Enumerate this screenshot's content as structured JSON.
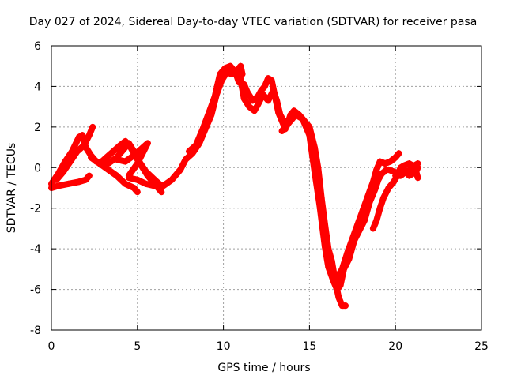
{
  "chart_data": {
    "type": "scatter",
    "title": "Day 027 of 2024, Sidereal Day-to-day VTEC variation (SDTVAR) for receiver pasa",
    "xlabel": "GPS time / hours",
    "ylabel": "SDTVAR / TECUs",
    "xlim": [
      0,
      25
    ],
    "ylim": [
      -8,
      6
    ],
    "xticks": [
      0,
      5,
      10,
      15,
      20,
      25
    ],
    "yticks": [
      -8,
      -6,
      -4,
      -2,
      0,
      2,
      4,
      6
    ],
    "grid": true,
    "marker": "+",
    "color": "#ff0000",
    "series": [
      {
        "name": "",
        "traces": [
          [
            [
              0.0,
              -1.0
            ],
            [
              0.4,
              -0.9
            ],
            [
              1.0,
              -0.8
            ],
            [
              1.6,
              -0.7
            ],
            [
              2.0,
              -0.6
            ],
            [
              2.2,
              -0.4
            ]
          ],
          [
            [
              0.0,
              -0.8
            ],
            [
              0.4,
              -0.3
            ],
            [
              0.8,
              0.3
            ],
            [
              1.2,
              0.8
            ],
            [
              1.6,
              1.5
            ],
            [
              1.8,
              1.6
            ],
            [
              2.0,
              1.0
            ],
            [
              2.3,
              0.6
            ],
            [
              2.6,
              0.3
            ],
            [
              3.0,
              0.2
            ]
          ],
          [
            [
              0.3,
              -0.6
            ],
            [
              0.7,
              -0.2
            ],
            [
              1.1,
              0.3
            ],
            [
              1.5,
              0.8
            ],
            [
              1.9,
              1.1
            ],
            [
              2.2,
              1.6
            ],
            [
              2.4,
              2.0
            ]
          ],
          [
            [
              2.3,
              0.5
            ],
            [
              2.8,
              0.2
            ],
            [
              3.3,
              -0.1
            ],
            [
              3.8,
              -0.4
            ],
            [
              4.3,
              -0.8
            ],
            [
              4.8,
              -1.0
            ],
            [
              5.0,
              -1.2
            ]
          ],
          [
            [
              2.8,
              0.2
            ],
            [
              3.2,
              0.5
            ],
            [
              3.6,
              0.8
            ],
            [
              4.0,
              1.1
            ],
            [
              4.3,
              1.3
            ],
            [
              4.6,
              1.0
            ],
            [
              5.0,
              0.4
            ],
            [
              5.3,
              0.0
            ],
            [
              5.6,
              -0.4
            ],
            [
              6.0,
              -0.8
            ],
            [
              6.4,
              -1.2
            ]
          ],
          [
            [
              3.3,
              0.2
            ],
            [
              3.8,
              0.5
            ],
            [
              4.2,
              0.9
            ],
            [
              4.5,
              1.2
            ],
            [
              4.8,
              0.8
            ],
            [
              5.1,
              0.3
            ],
            [
              5.5,
              -0.2
            ],
            [
              6.0,
              -0.6
            ],
            [
              6.4,
              -0.9
            ]
          ],
          [
            [
              3.8,
              0.4
            ],
            [
              4.3,
              0.3
            ],
            [
              4.8,
              0.6
            ],
            [
              5.2,
              0.9
            ],
            [
              5.6,
              1.2
            ],
            [
              5.0,
              0.2
            ],
            [
              4.5,
              -0.4
            ]
          ],
          [
            [
              4.5,
              -0.5
            ],
            [
              5.0,
              -0.6
            ],
            [
              5.5,
              -0.8
            ],
            [
              6.0,
              -0.9
            ],
            [
              6.5,
              -0.9
            ],
            [
              7.0,
              -0.6
            ],
            [
              7.5,
              -0.1
            ],
            [
              7.8,
              0.4
            ],
            [
              8.2,
              0.7
            ],
            [
              8.6,
              1.2
            ],
            [
              9.0,
              2.0
            ],
            [
              9.3,
              2.6
            ],
            [
              9.6,
              3.6
            ],
            [
              9.9,
              4.3
            ],
            [
              10.2,
              4.7
            ],
            [
              10.5,
              4.6
            ],
            [
              10.8,
              4.8
            ],
            [
              11.0,
              5.0
            ],
            [
              11.1,
              4.6
            ]
          ],
          [
            [
              8.0,
              0.8
            ],
            [
              8.4,
              1.1
            ],
            [
              8.8,
              1.9
            ],
            [
              9.2,
              2.8
            ],
            [
              9.5,
              3.5
            ],
            [
              9.8,
              4.6
            ],
            [
              10.1,
              4.9
            ],
            [
              10.4,
              5.0
            ],
            [
              10.7,
              4.7
            ],
            [
              10.9,
              4.2
            ],
            [
              11.2,
              4.1
            ],
            [
              11.4,
              3.7
            ],
            [
              11.7,
              3.3
            ],
            [
              12.0,
              3.5
            ],
            [
              12.2,
              3.8
            ],
            [
              12.4,
              4.0
            ],
            [
              12.6,
              4.4
            ],
            [
              12.8,
              4.3
            ],
            [
              13.0,
              3.5
            ],
            [
              13.2,
              2.7
            ],
            [
              13.4,
              2.3
            ],
            [
              13.6,
              1.9
            ]
          ],
          [
            [
              10.9,
              4.8
            ],
            [
              11.2,
              3.4
            ],
            [
              11.5,
              3.0
            ],
            [
              11.8,
              2.8
            ],
            [
              12.0,
              3.1
            ],
            [
              12.3,
              3.6
            ],
            [
              12.6,
              3.3
            ],
            [
              12.9,
              3.8
            ],
            [
              13.1,
              3.3
            ],
            [
              13.3,
              2.6
            ],
            [
              13.5,
              2.3
            ],
            [
              13.7,
              2.1
            ],
            [
              13.9,
              2.6
            ],
            [
              14.1,
              2.8
            ],
            [
              14.4,
              2.6
            ],
            [
              14.7,
              2.3
            ],
            [
              15.0,
              2.0
            ],
            [
              15.3,
              1.0
            ],
            [
              15.5,
              0.0
            ],
            [
              15.7,
              -1.5
            ],
            [
              15.9,
              -2.8
            ],
            [
              16.1,
              -4.0
            ],
            [
              16.3,
              -4.6
            ],
            [
              16.5,
              -5.6
            ],
            [
              16.7,
              -6.4
            ],
            [
              16.9,
              -6.8
            ],
            [
              17.1,
              -6.8
            ]
          ],
          [
            [
              13.4,
              1.8
            ],
            [
              13.8,
              2.2
            ],
            [
              14.2,
              2.6
            ],
            [
              14.6,
              2.4
            ],
            [
              15.0,
              1.6
            ],
            [
              15.3,
              -0.2
            ],
            [
              15.6,
              -1.9
            ],
            [
              15.9,
              -3.9
            ],
            [
              16.1,
              -4.9
            ],
            [
              16.4,
              -5.6
            ],
            [
              16.6,
              -6.0
            ],
            [
              16.8,
              -5.8
            ],
            [
              17.0,
              -5.0
            ],
            [
              17.3,
              -4.5
            ],
            [
              17.6,
              -3.6
            ],
            [
              17.9,
              -3.1
            ],
            [
              18.2,
              -2.6
            ],
            [
              18.5,
              -1.7
            ],
            [
              18.8,
              -1.1
            ],
            [
              19.0,
              -0.6
            ],
            [
              19.2,
              -0.3
            ],
            [
              19.5,
              -0.1
            ]
          ],
          [
            [
              16.6,
              -5.4
            ],
            [
              16.9,
              -5.0
            ],
            [
              17.2,
              -4.2
            ],
            [
              17.5,
              -3.5
            ],
            [
              17.8,
              -2.8
            ],
            [
              18.1,
              -2.1
            ],
            [
              18.4,
              -1.4
            ],
            [
              18.7,
              -0.7
            ],
            [
              18.9,
              -0.1
            ],
            [
              19.1,
              0.3
            ],
            [
              19.4,
              0.2
            ],
            [
              19.7,
              0.3
            ],
            [
              20.0,
              0.5
            ],
            [
              20.2,
              0.7
            ]
          ],
          [
            [
              18.7,
              -3.0
            ],
            [
              18.9,
              -2.6
            ],
            [
              19.1,
              -2.0
            ],
            [
              19.3,
              -1.5
            ],
            [
              19.6,
              -1.0
            ],
            [
              19.9,
              -0.7
            ],
            [
              20.1,
              -0.4
            ],
            [
              20.3,
              0.0
            ],
            [
              20.5,
              0.1
            ],
            [
              20.8,
              0.2
            ],
            [
              21.0,
              0.1
            ],
            [
              21.2,
              -0.2
            ],
            [
              21.3,
              -0.5
            ]
          ],
          [
            [
              19.6,
              -0.1
            ],
            [
              19.9,
              -0.2
            ],
            [
              20.2,
              -0.3
            ],
            [
              20.5,
              -0.1
            ],
            [
              20.8,
              -0.4
            ],
            [
              21.0,
              -0.3
            ],
            [
              21.2,
              -0.2
            ],
            [
              21.3,
              0.0
            ]
          ],
          [
            [
              20.0,
              -0.4
            ],
            [
              20.3,
              -0.4
            ],
            [
              20.6,
              -0.2
            ],
            [
              20.9,
              -0.1
            ],
            [
              21.1,
              0.1
            ],
            [
              21.3,
              0.2
            ]
          ]
        ]
      }
    ]
  }
}
